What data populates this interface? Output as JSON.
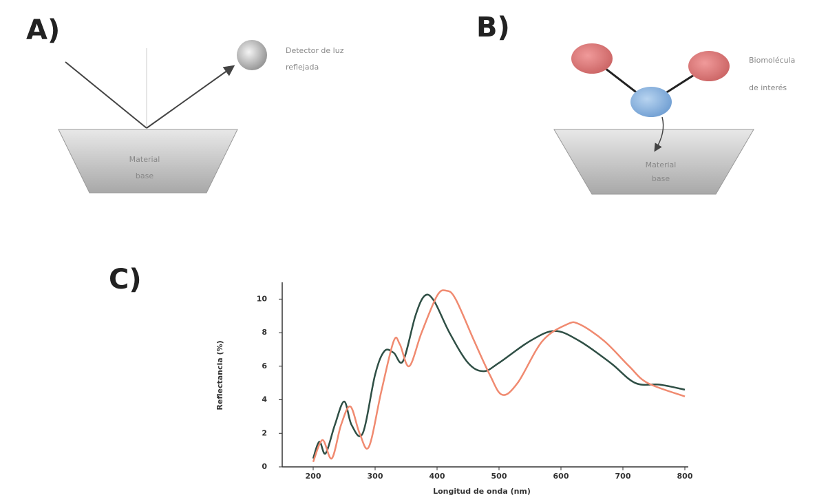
{
  "panel_a": {
    "label": "A)",
    "detector": "Detector de luz",
    "detector_line2": "reflejada",
    "material": "Material",
    "material_line2": "base"
  },
  "panel_b": {
    "label": "B)",
    "biomolecule": "Biomolécula",
    "biomolecule_line2": "de interés",
    "material": "Material",
    "material_line2": "base"
  },
  "panel_c": {
    "label": "C)"
  },
  "chart_data": {
    "type": "line",
    "xlabel": "Longitud de onda (nm)",
    "ylabel": "Reflectancia (%)",
    "xlim": [
      150,
      800
    ],
    "ylim": [
      0,
      11
    ],
    "xticks": [
      200,
      300,
      400,
      500,
      600,
      700,
      800
    ],
    "yticks": [
      0,
      2,
      4,
      6,
      8,
      10
    ],
    "series": [
      {
        "color": "#2f4f45",
        "x": [
          200,
          210,
          220,
          235,
          250,
          262,
          280,
          300,
          315,
          330,
          345,
          365,
          380,
          395,
          420,
          450,
          475,
          500,
          550,
          590,
          630,
          680,
          720,
          760,
          800
        ],
        "values": [
          0.5,
          1.5,
          0.8,
          2.5,
          3.9,
          2.5,
          2.0,
          5.5,
          6.9,
          6.8,
          6.3,
          9.0,
          10.2,
          9.9,
          8.0,
          6.2,
          5.7,
          6.2,
          7.5,
          8.1,
          7.5,
          6.2,
          5.0,
          4.9,
          4.6
        ]
      },
      {
        "color": "#f08a70",
        "x": [
          200,
          215,
          230,
          245,
          260,
          275,
          290,
          310,
          330,
          340,
          355,
          375,
          400,
          415,
          430,
          460,
          485,
          505,
          530,
          570,
          610,
          630,
          670,
          710,
          740,
          800
        ],
        "values": [
          0.3,
          1.6,
          0.5,
          2.5,
          3.6,
          2.0,
          1.2,
          4.5,
          7.5,
          7.3,
          6.0,
          8.0,
          10.2,
          10.5,
          10.0,
          7.5,
          5.5,
          4.3,
          5.0,
          7.5,
          8.5,
          8.5,
          7.5,
          6.0,
          5.0,
          4.2
        ]
      }
    ]
  }
}
